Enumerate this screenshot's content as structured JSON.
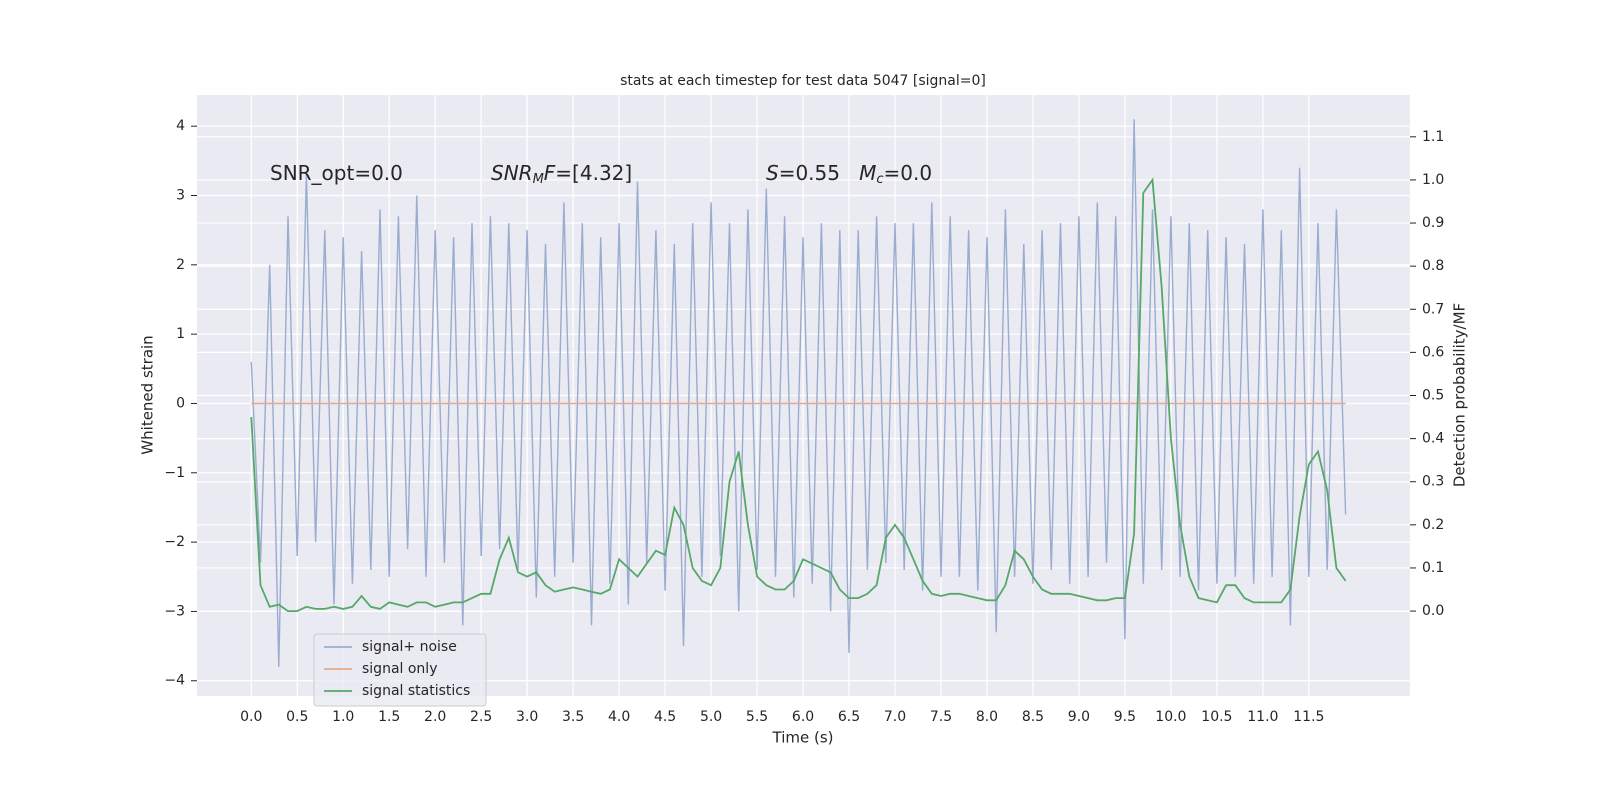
{
  "chart_data": {
    "type": "line",
    "title": "stats at each timestep for test data 5047 [signal=0]",
    "xlabel": "Time (s)",
    "ylabel": "Whitened strain",
    "y2label": "Detection probability/MF",
    "grid": true,
    "legend": "lower left",
    "xlim": [
      -0.59,
      12.6
    ],
    "ylim": [
      -4.22,
      4.45
    ],
    "y2lim": [
      -0.197,
      1.197
    ],
    "xticks": [
      {
        "value": 0,
        "label": "0.0"
      },
      {
        "value": 0.5,
        "label": "0.5"
      },
      {
        "value": 1,
        "label": "1.0"
      },
      {
        "value": 1.5,
        "label": "1.5"
      },
      {
        "value": 2,
        "label": "2.0"
      },
      {
        "value": 2.5,
        "label": "2.5"
      },
      {
        "value": 3,
        "label": "3.0"
      },
      {
        "value": 3.5,
        "label": "3.5"
      },
      {
        "value": 4,
        "label": "4.0"
      },
      {
        "value": 4.5,
        "label": "4.5"
      },
      {
        "value": 5,
        "label": "5.0"
      },
      {
        "value": 5.5,
        "label": "5.5"
      },
      {
        "value": 6,
        "label": "6.0"
      },
      {
        "value": 6.5,
        "label": "6.5"
      },
      {
        "value": 7,
        "label": "7.0"
      },
      {
        "value": 7.5,
        "label": "7.5"
      },
      {
        "value": 8,
        "label": "8.0"
      },
      {
        "value": 8.5,
        "label": "8.5"
      },
      {
        "value": 9,
        "label": "9.0"
      },
      {
        "value": 9.5,
        "label": "9.5"
      },
      {
        "value": 10,
        "label": "10.0"
      },
      {
        "value": 10.5,
        "label": "10.5"
      },
      {
        "value": 11,
        "label": "11.0"
      },
      {
        "value": 11.5,
        "label": "11.5"
      }
    ],
    "yticks": [
      {
        "value": -4,
        "label": "−4"
      },
      {
        "value": -3,
        "label": "−3"
      },
      {
        "value": -2,
        "label": "−2"
      },
      {
        "value": -1,
        "label": "−1"
      },
      0,
      1,
      2,
      3,
      4
    ],
    "y2ticks": [
      {
        "value": 0,
        "label": "0.0"
      },
      {
        "value": 0.1,
        "label": "0.1"
      },
      {
        "value": 0.2,
        "label": "0.2"
      },
      {
        "value": 0.3,
        "label": "0.3"
      },
      {
        "value": 0.4,
        "label": "0.4"
      },
      {
        "value": 0.5,
        "label": "0.5"
      },
      {
        "value": 0.6,
        "label": "0.6"
      },
      {
        "value": 0.7,
        "label": "0.7"
      },
      {
        "value": 0.8,
        "label": "0.8"
      },
      {
        "value": 0.9,
        "label": "0.9"
      },
      {
        "value": 1,
        "label": "1.0"
      },
      {
        "value": 1.1,
        "label": "1.1"
      }
    ],
    "annotations": [
      [
        {
          "text": "SNR_opt=0.0"
        }
      ],
      [
        {
          "text": "SNR",
          "italic": true
        },
        {
          "text": "M",
          "italic": true,
          "sub": true
        },
        {
          "text": "F",
          "italic": true
        },
        {
          "text": "=[4.32]"
        }
      ],
      [
        {
          "text": "S",
          "italic": true
        },
        {
          "text": "=0.55   "
        },
        {
          "text": "M",
          "italic": true
        },
        {
          "text": "c",
          "italic": true,
          "sub": true
        },
        {
          "text": "=0.0"
        }
      ]
    ],
    "x": [
      0,
      0.1,
      0.2,
      0.3,
      0.4,
      0.5,
      0.6,
      0.7,
      0.8,
      0.9,
      1,
      1.1,
      1.2,
      1.3,
      1.4,
      1.5,
      1.6,
      1.7,
      1.8,
      1.9,
      2,
      2.1,
      2.2,
      2.3,
      2.4,
      2.5,
      2.6,
      2.7,
      2.8,
      2.9,
      3,
      3.1,
      3.2,
      3.3,
      3.4,
      3.5,
      3.6,
      3.7,
      3.8,
      3.9,
      4,
      4.1,
      4.2,
      4.3,
      4.4,
      4.5,
      4.6,
      4.7,
      4.8,
      4.9,
      5,
      5.1,
      5.2,
      5.3,
      5.4,
      5.5,
      5.6,
      5.7,
      5.8,
      5.9,
      6,
      6.1,
      6.2,
      6.3,
      6.4,
      6.5,
      6.6,
      6.7,
      6.8,
      6.9,
      7,
      7.1,
      7.2,
      7.3,
      7.4,
      7.5,
      7.6,
      7.7,
      7.8,
      7.9,
      8,
      8.1,
      8.2,
      8.3,
      8.4,
      8.5,
      8.6,
      8.7,
      8.8,
      8.9,
      9,
      9.1,
      9.2,
      9.3,
      9.4,
      9.5,
      9.6,
      9.7,
      9.8,
      9.9,
      10,
      10.1,
      10.2,
      10.3,
      10.4,
      10.5,
      10.6,
      10.7,
      10.8,
      10.9,
      11,
      11.1,
      11.2,
      11.3,
      11.4,
      11.5,
      11.6,
      11.7,
      11.8,
      11.9
    ],
    "series": [
      {
        "name": "signal+ noise",
        "color": "#9aaccf",
        "values": [
          0.6,
          -2.3,
          2.0,
          -3.8,
          2.7,
          -2.2,
          3.3,
          -2.0,
          2.5,
          -2.9,
          2.4,
          -2.6,
          2.2,
          -2.4,
          2.8,
          -2.5,
          2.7,
          -2.1,
          3.0,
          -2.5,
          2.5,
          -2.3,
          2.4,
          -3.2,
          2.6,
          -2.2,
          2.7,
          -2.1,
          2.6,
          -2.4,
          2.5,
          -2.8,
          2.3,
          -2.5,
          2.9,
          -2.3,
          2.6,
          -3.2,
          2.4,
          -2.6,
          2.6,
          -2.9,
          3.2,
          -2.3,
          2.5,
          -2.7,
          2.3,
          -3.5,
          2.6,
          -2.5,
          2.9,
          -2.2,
          2.6,
          -3.0,
          2.8,
          -2.4,
          3.1,
          -2.5,
          2.7,
          -2.8,
          2.4,
          -2.6,
          2.6,
          -3.0,
          2.5,
          -3.6,
          2.5,
          -2.4,
          2.7,
          -2.3,
          2.6,
          -2.4,
          2.6,
          -2.7,
          2.9,
          -2.5,
          2.7,
          -2.5,
          2.5,
          -2.7,
          2.4,
          -3.3,
          2.8,
          -2.5,
          2.3,
          -2.6,
          2.5,
          -2.4,
          2.6,
          -2.6,
          2.7,
          -2.5,
          2.9,
          -2.3,
          2.7,
          -3.4,
          4.1,
          -2.6,
          2.8,
          -2.4,
          2.7,
          -2.5,
          2.6,
          -2.7,
          2.5,
          -2.6,
          2.4,
          -2.5,
          2.3,
          -2.6,
          2.8,
          -2.5,
          2.5,
          -3.2,
          3.4,
          -2.5,
          2.6,
          -2.4,
          2.8,
          -1.6
        ]
      },
      {
        "name": "signal only",
        "color": "#e8a98a",
        "x": [
          0,
          11.9
        ],
        "values": [
          0,
          0
        ]
      },
      {
        "name": "signal statistics",
        "color": "#55a868",
        "axis": "y2",
        "values": [
          0.45,
          0.06,
          0.01,
          0.015,
          0.0,
          0.0,
          0.01,
          0.005,
          0.005,
          0.01,
          0.005,
          0.01,
          0.035,
          0.01,
          0.005,
          0.02,
          0.015,
          0.01,
          0.02,
          0.02,
          0.01,
          0.015,
          0.02,
          0.02,
          0.03,
          0.04,
          0.04,
          0.12,
          0.17,
          0.09,
          0.08,
          0.09,
          0.06,
          0.045,
          0.05,
          0.055,
          0.05,
          0.045,
          0.04,
          0.05,
          0.12,
          0.1,
          0.08,
          0.11,
          0.14,
          0.13,
          0.24,
          0.2,
          0.1,
          0.07,
          0.06,
          0.1,
          0.3,
          0.37,
          0.2,
          0.08,
          0.06,
          0.05,
          0.05,
          0.07,
          0.12,
          0.11,
          0.1,
          0.09,
          0.05,
          0.03,
          0.03,
          0.04,
          0.06,
          0.17,
          0.2,
          0.17,
          0.12,
          0.07,
          0.04,
          0.035,
          0.04,
          0.04,
          0.035,
          0.03,
          0.025,
          0.025,
          0.06,
          0.14,
          0.12,
          0.08,
          0.05,
          0.04,
          0.04,
          0.04,
          0.035,
          0.03,
          0.025,
          0.025,
          0.03,
          0.03,
          0.18,
          0.97,
          1.0,
          0.75,
          0.4,
          0.2,
          0.08,
          0.03,
          0.025,
          0.02,
          0.06,
          0.06,
          0.03,
          0.02,
          0.02,
          0.02,
          0.02,
          0.05,
          0.22,
          0.34,
          0.37,
          0.28,
          0.1,
          0.07
        ]
      }
    ]
  }
}
